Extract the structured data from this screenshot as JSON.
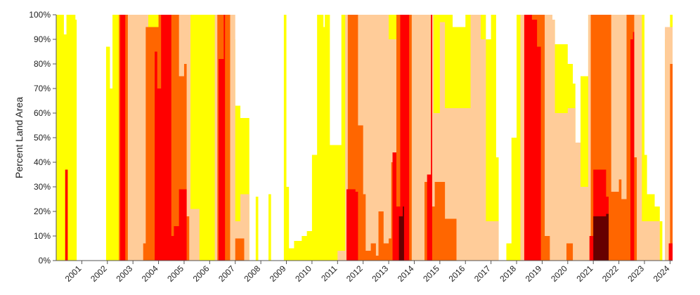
{
  "chart_data": {
    "type": "area",
    "title": "",
    "ylabel": "Percent Land Area",
    "xlabel": "",
    "xlim": [
      2000.0,
      2024.1
    ],
    "ylim": [
      0,
      100
    ],
    "yticks": [
      "0%",
      "10%",
      "20%",
      "30%",
      "40%",
      "50%",
      "60%",
      "70%",
      "80%",
      "90%",
      "100%"
    ],
    "yticks_values": [
      0,
      10,
      20,
      30,
      40,
      50,
      60,
      70,
      80,
      90,
      100
    ],
    "xticks": [
      "2001",
      "2002",
      "2003",
      "2004",
      "2005",
      "2006",
      "2007",
      "2008",
      "2009",
      "2010",
      "2011",
      "2012",
      "2013",
      "2014",
      "2015",
      "2016",
      "2017",
      "2018",
      "2019",
      "2020",
      "2021",
      "2022",
      "2023",
      "2024"
    ],
    "grid": false,
    "legend": "none",
    "series": [
      {
        "color": "#ffff00",
        "points": [
          [
            2000.0,
            100
          ],
          [
            2000.25,
            100
          ],
          [
            2000.3,
            92
          ],
          [
            2000.4,
            100
          ],
          [
            2000.6,
            100
          ],
          [
            2000.75,
            98
          ],
          [
            2000.8,
            0
          ],
          [
            2001.9,
            0
          ],
          [
            2001.95,
            87
          ],
          [
            2002.1,
            70
          ],
          [
            2002.2,
            100
          ],
          [
            2003.05,
            100
          ],
          [
            2003.3,
            100
          ],
          [
            2003.6,
            100
          ],
          [
            2004.0,
            100
          ],
          [
            2005.0,
            100
          ],
          [
            2005.6,
            100
          ],
          [
            2006.0,
            100
          ],
          [
            2006.4,
            100
          ],
          [
            2006.6,
            100
          ],
          [
            2006.8,
            90
          ],
          [
            2007.0,
            63
          ],
          [
            2007.2,
            58
          ],
          [
            2007.4,
            58
          ],
          [
            2007.55,
            0
          ],
          [
            2007.8,
            26
          ],
          [
            2007.9,
            0
          ],
          [
            2008.3,
            27
          ],
          [
            2008.4,
            0
          ],
          [
            2008.9,
            100
          ],
          [
            2009.0,
            30
          ],
          [
            2009.1,
            5
          ],
          [
            2009.3,
            8
          ],
          [
            2009.6,
            10
          ],
          [
            2009.8,
            12
          ],
          [
            2010.0,
            43
          ],
          [
            2010.2,
            100
          ],
          [
            2010.35,
            100
          ],
          [
            2010.45,
            95
          ],
          [
            2010.5,
            100
          ],
          [
            2010.7,
            47
          ],
          [
            2011.0,
            47
          ],
          [
            2011.15,
            100
          ],
          [
            2011.4,
            100
          ],
          [
            2011.8,
            90
          ],
          [
            2012.0,
            85
          ],
          [
            2012.2,
            100
          ],
          [
            2012.5,
            100
          ],
          [
            2013.0,
            100
          ],
          [
            2013.5,
            100
          ],
          [
            2014.0,
            100
          ],
          [
            2014.5,
            100
          ],
          [
            2015.0,
            100
          ],
          [
            2015.5,
            95
          ],
          [
            2016.0,
            100
          ],
          [
            2016.5,
            100
          ],
          [
            2016.8,
            90
          ],
          [
            2017.0,
            100
          ],
          [
            2017.2,
            42
          ],
          [
            2017.3,
            0
          ],
          [
            2017.6,
            7
          ],
          [
            2017.8,
            50
          ],
          [
            2018.0,
            100
          ],
          [
            2018.5,
            100
          ],
          [
            2019.0,
            100
          ],
          [
            2019.4,
            98
          ],
          [
            2019.5,
            88
          ],
          [
            2019.9,
            88
          ],
          [
            2020.0,
            80
          ],
          [
            2020.2,
            72
          ],
          [
            2020.3,
            47
          ],
          [
            2020.5,
            75
          ],
          [
            2020.8,
            100
          ],
          [
            2021.5,
            100
          ],
          [
            2022.0,
            100
          ],
          [
            2022.3,
            100
          ],
          [
            2022.5,
            100
          ],
          [
            2022.9,
            100
          ],
          [
            2023.0,
            43
          ],
          [
            2023.1,
            27
          ],
          [
            2023.4,
            22
          ],
          [
            2023.6,
            16
          ],
          [
            2023.7,
            0
          ],
          [
            2023.8,
            90
          ],
          [
            2024.0,
            100
          ],
          [
            2024.1,
            100
          ]
        ]
      },
      {
        "color": "#ffcc99",
        "points": [
          [
            2000.0,
            0
          ],
          [
            2002.4,
            0
          ],
          [
            2002.45,
            100
          ],
          [
            2003.4,
            100
          ],
          [
            2003.6,
            88
          ],
          [
            2003.7,
            70
          ],
          [
            2004.0,
            100
          ],
          [
            2004.5,
            100
          ],
          [
            2004.7,
            100
          ],
          [
            2005.0,
            100
          ],
          [
            2005.25,
            21
          ],
          [
            2005.5,
            21
          ],
          [
            2005.6,
            0
          ],
          [
            2006.0,
            0
          ],
          [
            2006.2,
            100
          ],
          [
            2006.5,
            100
          ],
          [
            2006.7,
            100
          ],
          [
            2007.0,
            16
          ],
          [
            2007.2,
            27
          ],
          [
            2007.4,
            27
          ],
          [
            2007.55,
            0
          ],
          [
            2010.95,
            0
          ],
          [
            2011.0,
            4
          ],
          [
            2011.3,
            100
          ],
          [
            2012.0,
            100
          ],
          [
            2012.2,
            100
          ],
          [
            2012.4,
            100
          ],
          [
            2012.7,
            100
          ],
          [
            2013.0,
            90
          ],
          [
            2013.3,
            58
          ],
          [
            2013.4,
            100
          ],
          [
            2014.0,
            100
          ],
          [
            2014.5,
            100
          ],
          [
            2014.75,
            60
          ],
          [
            2015.0,
            97
          ],
          [
            2015.2,
            62
          ],
          [
            2015.5,
            62
          ],
          [
            2016.0,
            62
          ],
          [
            2016.2,
            100
          ],
          [
            2016.5,
            100
          ],
          [
            2016.6,
            90
          ],
          [
            2016.8,
            16
          ],
          [
            2017.2,
            16
          ],
          [
            2017.3,
            0
          ],
          [
            2018.0,
            0
          ],
          [
            2018.15,
            100
          ],
          [
            2018.7,
            100
          ],
          [
            2019.0,
            100
          ],
          [
            2019.4,
            98
          ],
          [
            2019.5,
            60
          ],
          [
            2019.8,
            60
          ],
          [
            2020.0,
            62
          ],
          [
            2020.3,
            48
          ],
          [
            2020.5,
            30
          ],
          [
            2020.8,
            100
          ],
          [
            2021.0,
            100
          ],
          [
            2021.8,
            100
          ],
          [
            2022.0,
            100
          ],
          [
            2022.3,
            100
          ],
          [
            2022.5,
            100
          ],
          [
            2022.8,
            100
          ],
          [
            2022.9,
            16
          ],
          [
            2023.3,
            16
          ],
          [
            2023.6,
            0
          ],
          [
            2023.7,
            0
          ],
          [
            2023.8,
            95
          ],
          [
            2024.1,
            95
          ]
        ]
      },
      {
        "color": "#ff6600",
        "points": [
          [
            2000.0,
            0
          ],
          [
            2002.4,
            0
          ],
          [
            2002.45,
            100
          ],
          [
            2002.75,
            100
          ],
          [
            2002.8,
            0
          ],
          [
            2003.3,
            0
          ],
          [
            2003.4,
            7
          ],
          [
            2003.5,
            95
          ],
          [
            2004.0,
            100
          ],
          [
            2004.6,
            100
          ],
          [
            2004.8,
            75
          ],
          [
            2005.0,
            80
          ],
          [
            2005.1,
            18
          ],
          [
            2005.2,
            0
          ],
          [
            2006.2,
            0
          ],
          [
            2006.3,
            100
          ],
          [
            2006.7,
            100
          ],
          [
            2006.8,
            0
          ],
          [
            2007.0,
            9
          ],
          [
            2007.3,
            9
          ],
          [
            2007.35,
            0
          ],
          [
            2011.3,
            0
          ],
          [
            2011.4,
            100
          ],
          [
            2011.6,
            100
          ],
          [
            2011.8,
            55
          ],
          [
            2012.0,
            27
          ],
          [
            2012.1,
            4
          ],
          [
            2012.3,
            7
          ],
          [
            2012.5,
            2
          ],
          [
            2012.6,
            20
          ],
          [
            2012.8,
            7
          ],
          [
            2013.0,
            9
          ],
          [
            2013.1,
            40
          ],
          [
            2013.3,
            100
          ],
          [
            2013.8,
            100
          ],
          [
            2013.9,
            0
          ],
          [
            2014.3,
            0
          ],
          [
            2014.4,
            32
          ],
          [
            2014.6,
            32
          ],
          [
            2014.7,
            22
          ],
          [
            2014.8,
            32
          ],
          [
            2015.0,
            32
          ],
          [
            2015.2,
            17
          ],
          [
            2015.6,
            17
          ],
          [
            2015.65,
            0
          ],
          [
            2018.2,
            0
          ],
          [
            2018.3,
            100
          ],
          [
            2019.0,
            100
          ],
          [
            2019.1,
            10
          ],
          [
            2019.3,
            0
          ],
          [
            2019.9,
            0
          ],
          [
            2019.95,
            7
          ],
          [
            2020.1,
            7
          ],
          [
            2020.2,
            0
          ],
          [
            2020.8,
            0
          ],
          [
            2020.9,
            100
          ],
          [
            2021.6,
            100
          ],
          [
            2021.7,
            28
          ],
          [
            2021.9,
            28
          ],
          [
            2022.0,
            33
          ],
          [
            2022.1,
            25
          ],
          [
            2022.3,
            100
          ],
          [
            2022.5,
            100
          ],
          [
            2022.6,
            42
          ],
          [
            2022.7,
            0
          ],
          [
            2023.9,
            0
          ],
          [
            2024.0,
            80
          ],
          [
            2024.1,
            80
          ]
        ]
      },
      {
        "color": "#ff0000",
        "points": [
          [
            2000.0,
            0
          ],
          [
            2000.3,
            0
          ],
          [
            2000.35,
            37
          ],
          [
            2000.45,
            0
          ],
          [
            2002.4,
            0
          ],
          [
            2002.5,
            100
          ],
          [
            2002.6,
            100
          ],
          [
            2002.7,
            0
          ],
          [
            2003.8,
            0
          ],
          [
            2003.85,
            85
          ],
          [
            2003.95,
            70
          ],
          [
            2004.1,
            100
          ],
          [
            2004.4,
            100
          ],
          [
            2004.5,
            10
          ],
          [
            2004.6,
            14
          ],
          [
            2004.7,
            14
          ],
          [
            2004.8,
            29
          ],
          [
            2005.0,
            29
          ],
          [
            2005.1,
            0
          ],
          [
            2006.3,
            0
          ],
          [
            2006.35,
            82
          ],
          [
            2006.55,
            100
          ],
          [
            2006.6,
            0
          ],
          [
            2011.3,
            0
          ],
          [
            2011.35,
            29
          ],
          [
            2011.7,
            28
          ],
          [
            2011.8,
            0
          ],
          [
            2013.1,
            0
          ],
          [
            2013.15,
            44
          ],
          [
            2013.3,
            22
          ],
          [
            2013.45,
            100
          ],
          [
            2013.6,
            100
          ],
          [
            2013.8,
            0
          ],
          [
            2014.4,
            0
          ],
          [
            2014.5,
            35
          ],
          [
            2014.65,
            100
          ],
          [
            2014.7,
            0
          ],
          [
            2018.2,
            0
          ],
          [
            2018.3,
            100
          ],
          [
            2018.6,
            98
          ],
          [
            2018.8,
            87
          ],
          [
            2018.95,
            0
          ],
          [
            2020.8,
            0
          ],
          [
            2020.85,
            10
          ],
          [
            2021.0,
            37
          ],
          [
            2021.25,
            37
          ],
          [
            2021.5,
            26
          ],
          [
            2021.6,
            0
          ],
          [
            2022.4,
            0
          ],
          [
            2022.45,
            90
          ],
          [
            2022.55,
            93
          ],
          [
            2022.6,
            0
          ],
          [
            2023.9,
            0
          ],
          [
            2023.95,
            7
          ],
          [
            2024.05,
            7
          ],
          [
            2024.1,
            0
          ]
        ]
      },
      {
        "color": "#660000",
        "points": [
          [
            2000.0,
            0
          ],
          [
            2013.35,
            0
          ],
          [
            2013.4,
            18
          ],
          [
            2013.5,
            18
          ],
          [
            2013.55,
            22
          ],
          [
            2013.6,
            0
          ],
          [
            2020.95,
            0
          ],
          [
            2021.0,
            18
          ],
          [
            2021.5,
            19
          ],
          [
            2021.6,
            0
          ],
          [
            2024.1,
            0
          ]
        ]
      }
    ]
  }
}
